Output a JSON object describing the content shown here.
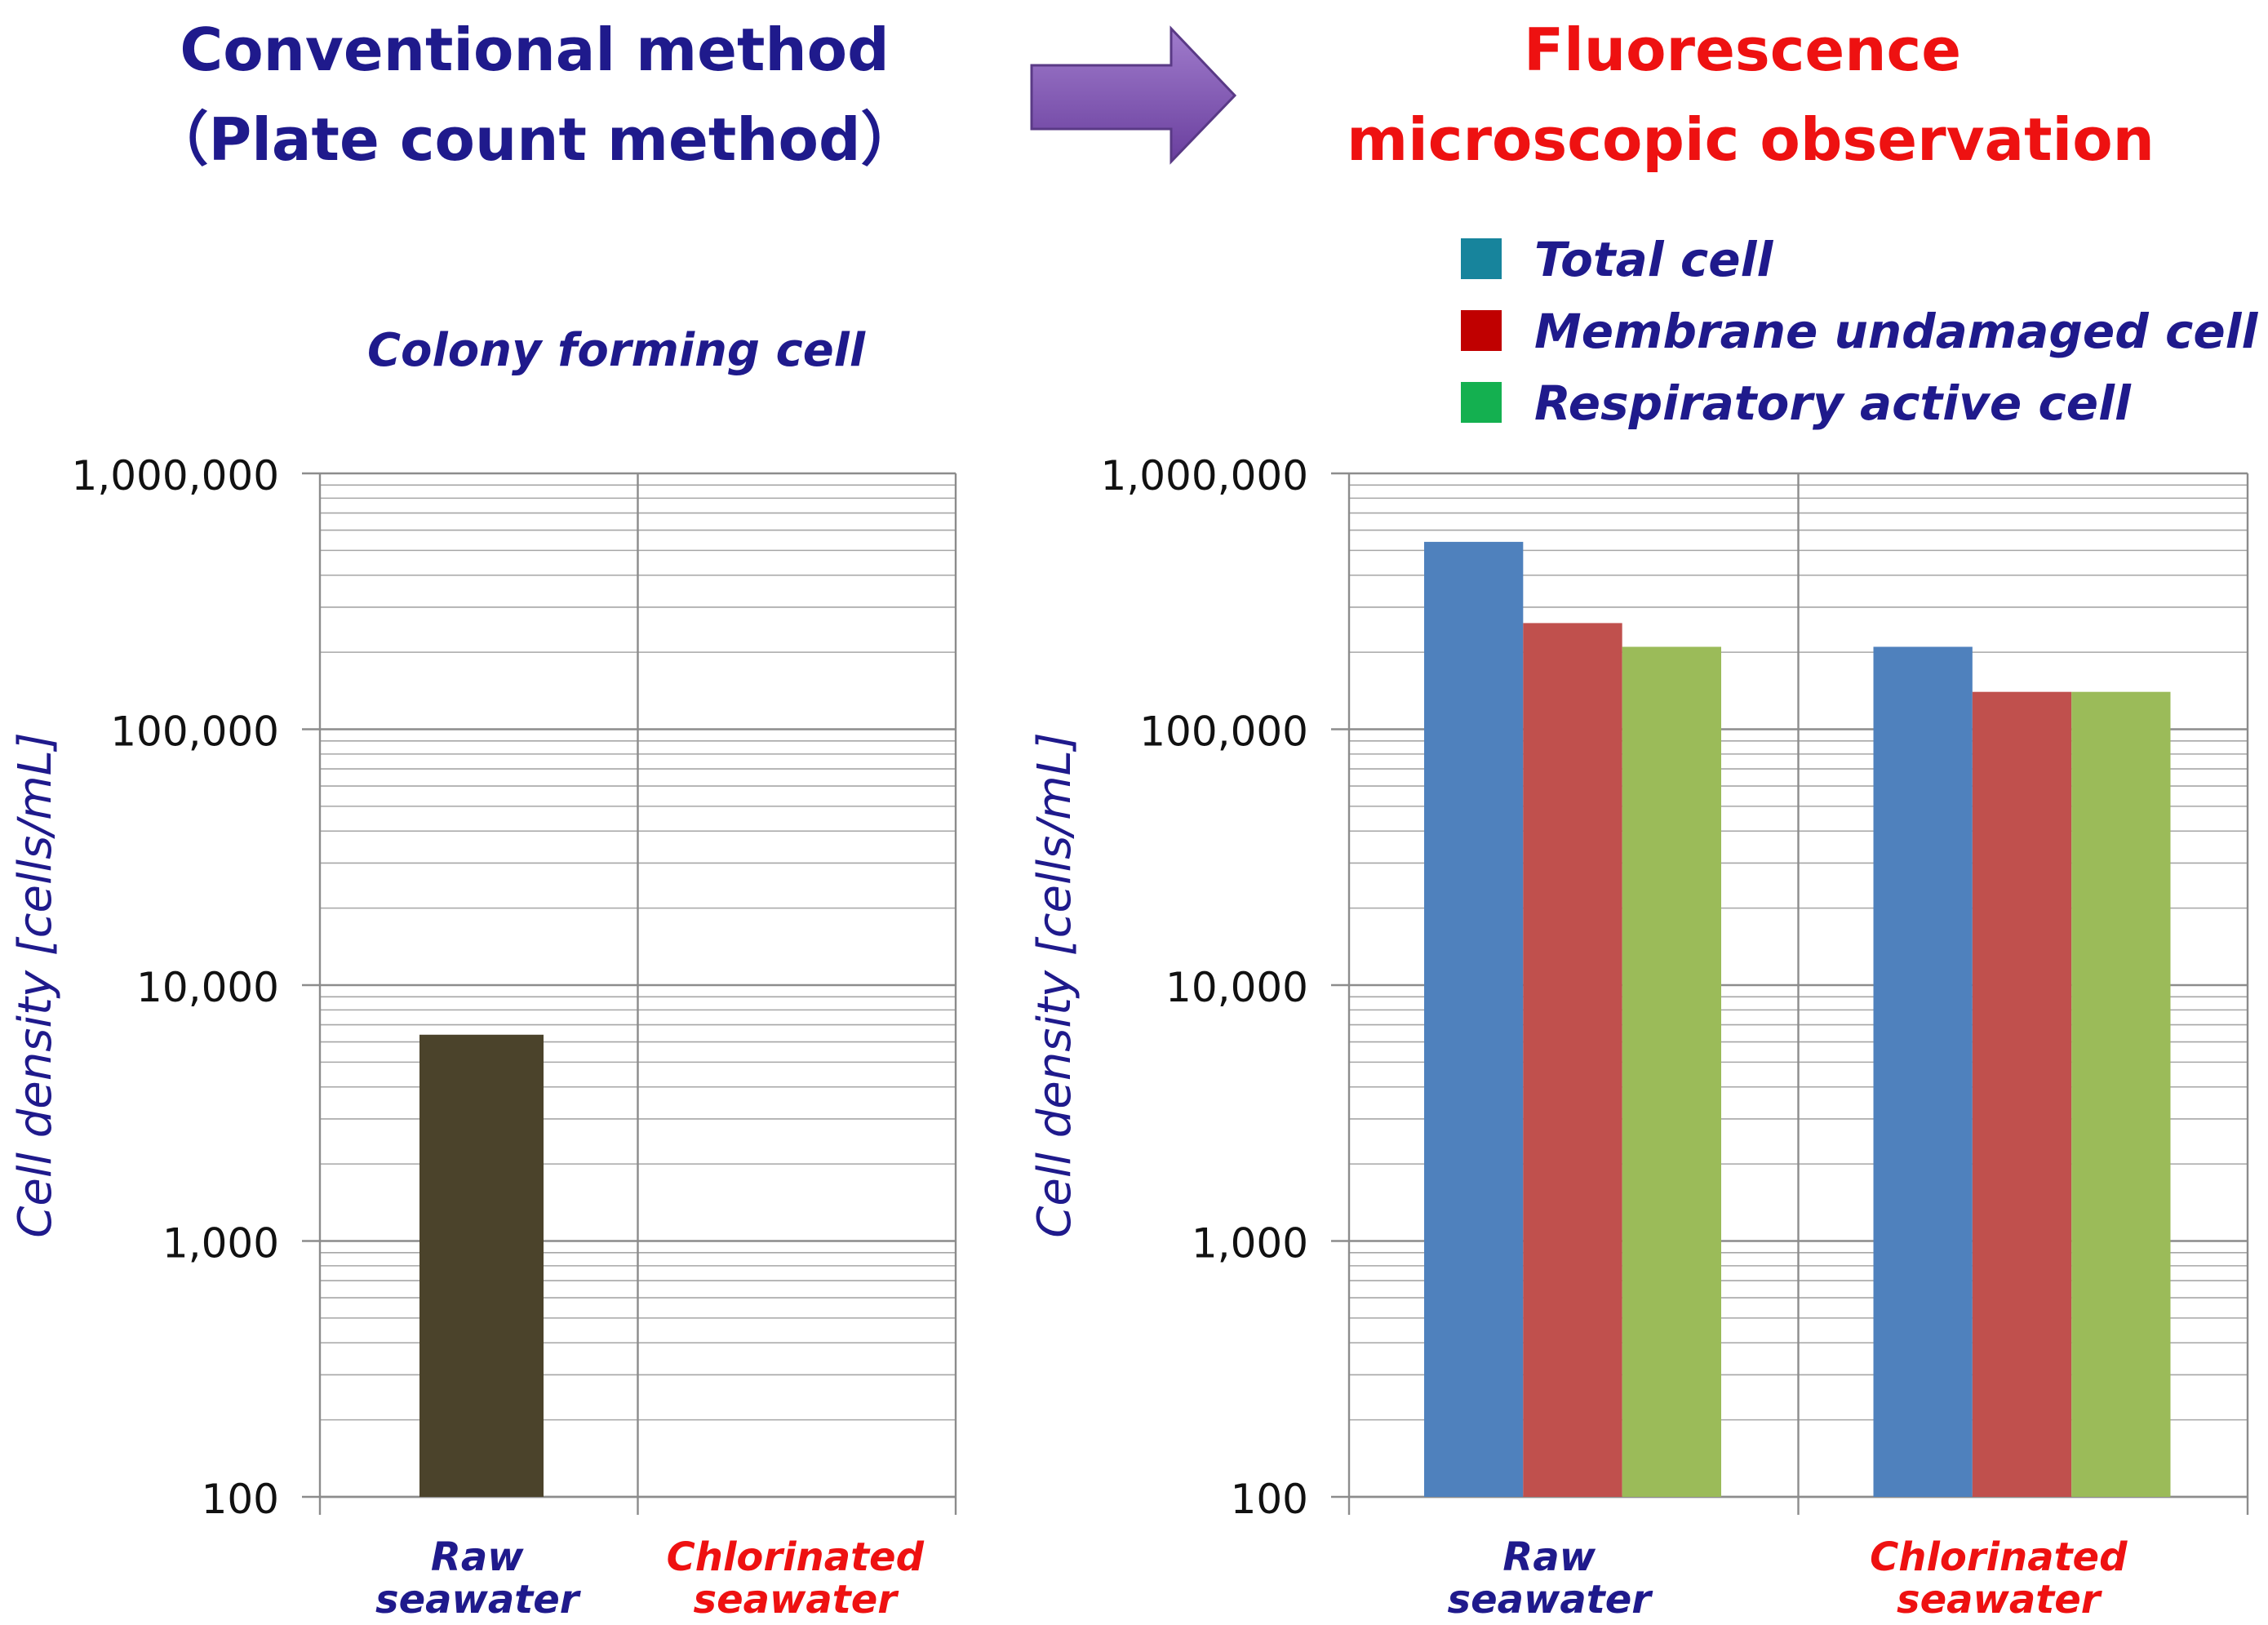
{
  "headers": {
    "left_line1": "Conventional method",
    "left_line2": "（Plate count method）",
    "right_line1": "Fluorescence",
    "right_line2": "microscopic observation"
  },
  "colors": {
    "header_left": "#1f1a8c",
    "header_right": "#ee1111",
    "label_blue": "#1f1a8c",
    "label_red": "#ee1111",
    "bar_cfc": "#4b432b",
    "series_total": "#4f81bd",
    "series_membrane": "#c0504d",
    "series_resp": "#9bbb59",
    "legend_total": "#17849c",
    "legend_membrane": "#c00000",
    "legend_resp": "#14b050",
    "arrow": "#7e55b0"
  },
  "chart_data": [
    {
      "type": "bar",
      "title": "Colony forming cell",
      "categories": [
        "Raw\nseawater",
        "Chlorinated\nseawater"
      ],
      "series": [
        {
          "name": "Colony forming cell",
          "values": [
            6400,
            null
          ]
        }
      ],
      "ylabel": "Cell density [cells/mL]",
      "yscale": "log",
      "ylim": [
        100,
        1000000
      ],
      "yticks": [
        "100",
        "1,000",
        "10,000",
        "100,000",
        "1,000,000"
      ],
      "grid": true
    },
    {
      "type": "bar",
      "title": "",
      "categories": [
        "Raw\nseawater",
        "Chlorinated\nseawater"
      ],
      "series": [
        {
          "name": "Total cell",
          "values": [
            540000,
            210000
          ]
        },
        {
          "name": "Membrane undamaged cell",
          "values": [
            260000,
            140000
          ]
        },
        {
          "name": "Respiratory active cell",
          "values": [
            210000,
            140000
          ]
        }
      ],
      "ylabel": "Cell density [cells/mL]",
      "yscale": "log",
      "ylim": [
        100,
        1000000
      ],
      "yticks": [
        "100",
        "1,000",
        "10,000",
        "100,000",
        "1,000,000"
      ],
      "legend": "top-right",
      "grid": true
    }
  ]
}
